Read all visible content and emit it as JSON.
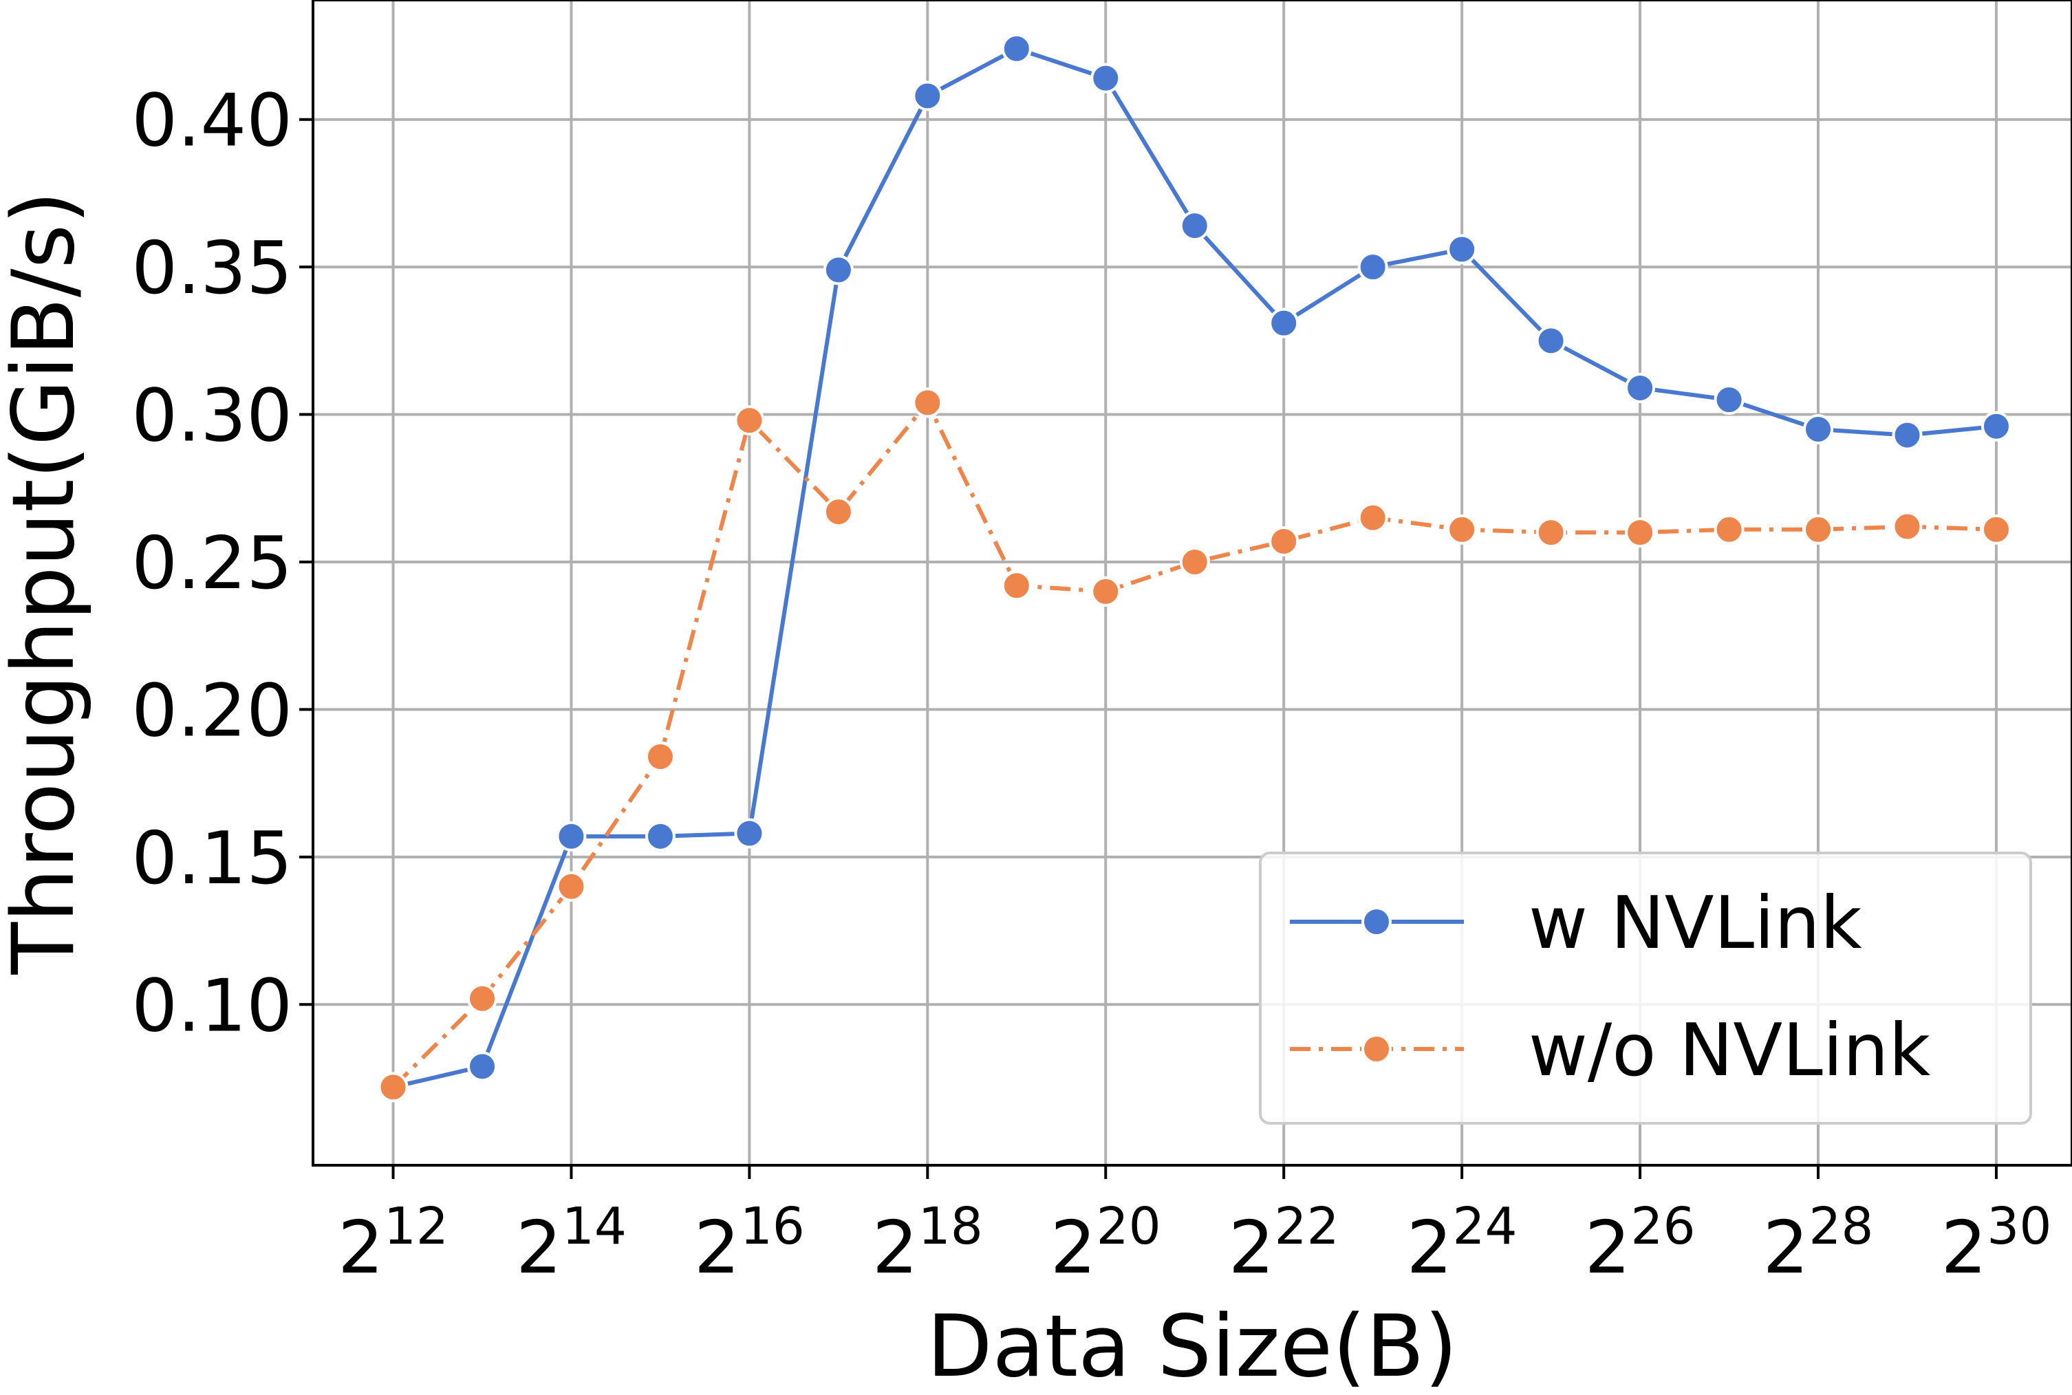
{
  "chart_data": {
    "type": "line",
    "title": "",
    "xlabel": "Data Size(B)",
    "ylabel": "Throughput(GiB/s)",
    "x_scale": "log2",
    "x_exponents": [
      12,
      13,
      14,
      15,
      16,
      17,
      18,
      19,
      20,
      21,
      22,
      23,
      24,
      25,
      26,
      27,
      28,
      29,
      30
    ],
    "xlim_exponents": [
      11.1,
      30.85
    ],
    "x_ticks": [
      {
        "base": "2",
        "exp": "12"
      },
      {
        "base": "2",
        "exp": "14"
      },
      {
        "base": "2",
        "exp": "16"
      },
      {
        "base": "2",
        "exp": "18"
      },
      {
        "base": "2",
        "exp": "20"
      },
      {
        "base": "2",
        "exp": "22"
      },
      {
        "base": "2",
        "exp": "24"
      },
      {
        "base": "2",
        "exp": "26"
      },
      {
        "base": "2",
        "exp": "28"
      },
      {
        "base": "2",
        "exp": "30"
      }
    ],
    "ylim": [
      0.0455,
      0.4405
    ],
    "y_ticks": [
      "0.10",
      "0.15",
      "0.20",
      "0.25",
      "0.30",
      "0.35",
      "0.40"
    ],
    "grid": true,
    "legend_position": "lower right",
    "series": [
      {
        "name": "w NVLink",
        "color": "#4878d0",
        "linestyle": "solid",
        "marker": "circle",
        "values": [
          0.072,
          0.079,
          0.157,
          0.157,
          0.158,
          0.349,
          0.408,
          0.424,
          0.414,
          0.364,
          0.331,
          0.35,
          0.356,
          0.325,
          0.309,
          0.305,
          0.295,
          0.293,
          0.296
        ]
      },
      {
        "name": "w/o NVLink",
        "color": "#ee854a",
        "linestyle": "dashdot",
        "marker": "circle",
        "values": [
          0.072,
          0.102,
          0.14,
          0.184,
          0.298,
          0.267,
          0.304,
          0.242,
          0.24,
          0.25,
          0.257,
          0.265,
          0.261,
          0.26,
          0.26,
          0.261,
          0.261,
          0.262,
          0.261
        ]
      }
    ]
  }
}
